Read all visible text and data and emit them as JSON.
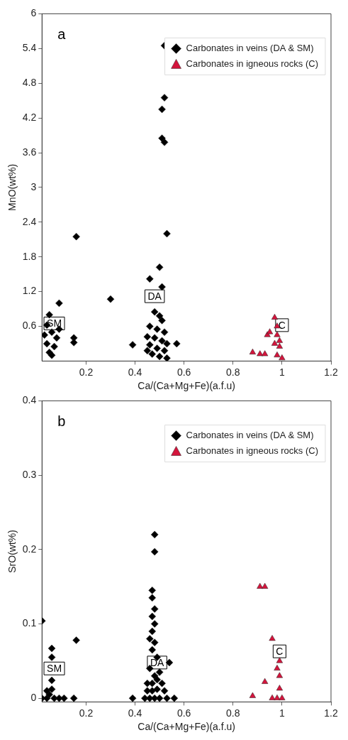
{
  "chart_data": [
    {
      "type": "scatter",
      "xlabel": "Ca/(Ca+Mg+Fe)(a.f.u)",
      "ylabel": "MnO(wt%)",
      "xlim": [
        0.02,
        1.2
      ],
      "xticks": [
        0.2,
        0.4,
        0.6,
        0.8,
        1,
        1.2
      ],
      "ylim": [
        0,
        6
      ],
      "yticks": [
        0.6,
        1.2,
        1.8,
        2.4,
        3,
        3.6,
        4.2,
        4.8,
        5.4,
        6
      ],
      "grid": false,
      "legend": "top right",
      "annotations": [
        "a",
        {
          "text": "SM",
          "x": 0.07,
          "y": 0.65
        },
        {
          "text": "DA",
          "x": 0.48,
          "y": 1.12
        },
        {
          "text": "C",
          "x": 1.0,
          "y": 0.62
        }
      ],
      "series": [
        {
          "name": "Carbonates in veins (DA & SM)",
          "color": "#000000",
          "marker": "diamond",
          "x": [
            0.52,
            0.52,
            0.51,
            0.51,
            0.52,
            0.53,
            0.16,
            0.5,
            0.46,
            0.51,
            0.3,
            0.09,
            0.15,
            0.15,
            0.39,
            0.57,
            0.05,
            0.04,
            0.03,
            0.06,
            0.08,
            0.04,
            0.07,
            0.05,
            0.09,
            0.06,
            0.48,
            0.5,
            0.51,
            0.46,
            0.49,
            0.52,
            0.45,
            0.48,
            0.51,
            0.53,
            0.46,
            0.49,
            0.52,
            0.47,
            0.5,
            0.53,
            0.45
          ],
          "values": [
            5.45,
            4.55,
            4.35,
            3.85,
            3.78,
            2.2,
            2.15,
            1.62,
            1.42,
            1.28,
            1.07,
            1.0,
            0.4,
            0.32,
            0.28,
            0.3,
            0.8,
            0.62,
            0.45,
            0.5,
            0.4,
            0.3,
            0.25,
            0.15,
            0.55,
            0.1,
            0.85,
            0.78,
            0.7,
            0.6,
            0.55,
            0.5,
            0.42,
            0.4,
            0.35,
            0.3,
            0.28,
            0.22,
            0.18,
            0.12,
            0.08,
            0.05,
            0.18
          ]
        },
        {
          "name": "Carbonates in igneous rocks (C)",
          "color": "#d4143c",
          "marker": "triangle",
          "x": [
            0.88,
            0.91,
            0.93,
            0.94,
            0.95,
            0.97,
            0.98,
            0.98,
            0.99,
            0.99,
            0.98,
            1.0,
            0.97
          ],
          "values": [
            0.15,
            0.12,
            0.12,
            0.45,
            0.5,
            0.75,
            0.6,
            0.45,
            0.35,
            0.25,
            0.1,
            0.05,
            0.3
          ]
        }
      ]
    },
    {
      "type": "scatter",
      "xlabel": "Ca/(Ca+Mg+Fe)(a.f.u)",
      "ylabel": "SrO(wt%)",
      "xlim": [
        0.02,
        1.2
      ],
      "xticks": [
        0.2,
        0.4,
        0.6,
        0.8,
        1,
        1.2
      ],
      "ylim": [
        -0.005,
        0.4
      ],
      "yticks": [
        0,
        0.1,
        0.2,
        0.3,
        0.4
      ],
      "grid": false,
      "legend": "top right",
      "annotations": [
        "b",
        {
          "text": "SM",
          "x": 0.07,
          "y": 0.04
        },
        {
          "text": "DA",
          "x": 0.49,
          "y": 0.048
        },
        {
          "text": "C",
          "x": 0.99,
          "y": 0.063
        }
      ],
      "series": [
        {
          "name": "Carbonates in veins (DA & SM)",
          "color": "#000000",
          "marker": "diamond",
          "x": [
            0.02,
            0.06,
            0.06,
            0.16,
            0.06,
            0.02,
            0.04,
            0.05,
            0.07,
            0.09,
            0.11,
            0.04,
            0.06,
            0.15,
            0.39,
            0.56,
            0.48,
            0.48,
            0.47,
            0.47,
            0.48,
            0.47,
            0.48,
            0.47,
            0.46,
            0.48,
            0.47,
            0.49,
            0.54,
            0.46,
            0.48,
            0.5,
            0.45,
            0.47,
            0.49,
            0.51,
            0.45,
            0.47,
            0.49,
            0.52,
            0.44,
            0.46,
            0.48,
            0.5,
            0.53
          ],
          "values": [
            0.104,
            0.067,
            0.055,
            0.078,
            0.024,
            0.0,
            0.0,
            0.005,
            0.0,
            0.0,
            0.0,
            0.01,
            0.012,
            0.0,
            0.0,
            0.0,
            0.22,
            0.197,
            0.145,
            0.135,
            0.12,
            0.11,
            0.1,
            0.09,
            0.08,
            0.075,
            0.065,
            0.055,
            0.048,
            0.04,
            0.03,
            0.035,
            0.02,
            0.02,
            0.025,
            0.02,
            0.01,
            0.01,
            0.012,
            0.01,
            0.0,
            0.0,
            0.0,
            0.0,
            0.0
          ]
        },
        {
          "name": "Carbonates in igneous rocks (C)",
          "color": "#d4143c",
          "marker": "triangle",
          "x": [
            0.91,
            0.93,
            0.96,
            0.99,
            0.98,
            0.99,
            0.93,
            0.99,
            0.88,
            0.96,
            0.98,
            1.0
          ],
          "values": [
            0.15,
            0.15,
            0.08,
            0.05,
            0.04,
            0.03,
            0.022,
            0.013,
            0.003,
            0.0,
            0.0,
            0.0
          ]
        }
      ]
    }
  ]
}
